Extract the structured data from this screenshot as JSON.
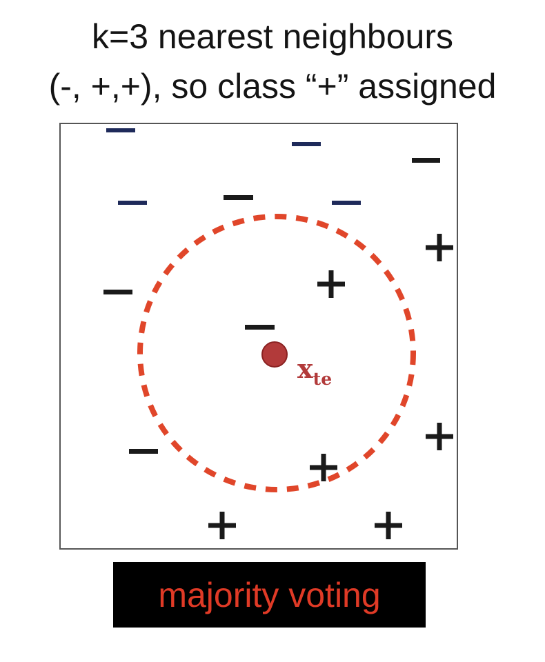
{
  "title": {
    "line1": "k=3 nearest neighbours",
    "line2": "(-, +,+), so class “+” assigned"
  },
  "test_point": {
    "label_main": "x",
    "label_sub": "te",
    "color": "#b23a3a"
  },
  "neighbourhood": {
    "k": 3,
    "color": "#e0462a"
  },
  "colors": {
    "minus_dark": "#1a1a1a",
    "minus_blue": "#1e2a5a",
    "plus": "#1a1a1a",
    "caption_text": "#e03a26",
    "caption_bg": "#000000"
  },
  "caption": {
    "text": "majority voting"
  }
}
